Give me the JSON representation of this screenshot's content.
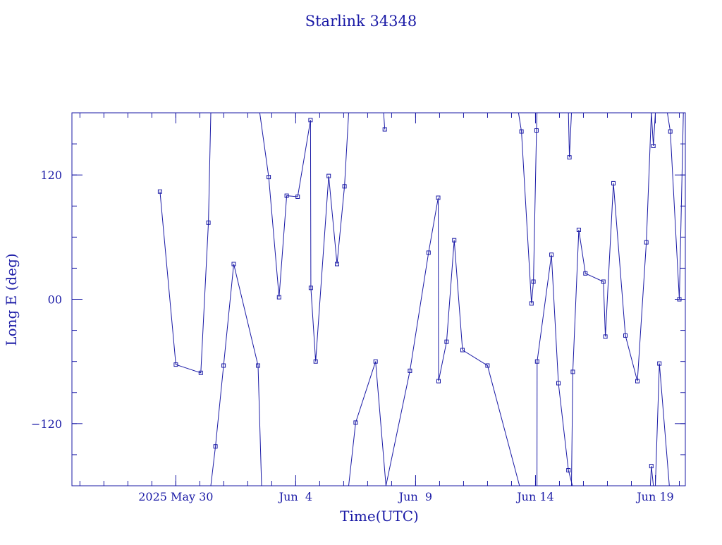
{
  "chart_data": {
    "type": "line",
    "title": "Starlink 34348",
    "xlabel": "Time(UTC)",
    "ylabel": "Long E (deg)",
    "x_unit": "days",
    "xlim": [
      "2025-05-25T16:00",
      "2025-06-20T06:00"
    ],
    "ylim": [
      -180,
      180
    ],
    "x_ticks": [
      {
        "value": "2025-05-30T00:00",
        "label": "2025 May 30"
      },
      {
        "value": "2025-06-04T00:00",
        "label": "Jun  4"
      },
      {
        "value": "2025-06-09T00:00",
        "label": "Jun  9"
      },
      {
        "value": "2025-06-14T00:00",
        "label": "Jun 14"
      },
      {
        "value": "2025-06-19T00:00",
        "label": "Jun 19"
      }
    ],
    "y_ticks": [
      {
        "value": 120,
        "label": "120"
      },
      {
        "value": 0,
        "label": "00"
      },
      {
        "value": -120,
        "label": "−120"
      }
    ],
    "grid": false,
    "legend": "none",
    "color": "#1a1aa6",
    "series": [
      {
        "points": [
          [
            "2025-05-29T08:10",
            104
          ],
          [
            "2025-05-30T00:00",
            -63
          ],
          [
            "2025-05-31T01:00",
            -71
          ],
          [
            "2025-05-31T08:40",
            74
          ],
          [
            "2025-05-31T11:00",
            180
          ]
        ]
      },
      {
        "points": [
          [
            "2025-05-31T11:00",
            -180
          ],
          [
            "2025-05-31T15:40",
            -142
          ],
          [
            "2025-05-31T23:50",
            -64
          ],
          [
            "2025-06-01T10:00",
            34
          ],
          [
            "2025-06-02T10:20",
            -64
          ],
          [
            "2025-06-02T13:50",
            -180
          ]
        ]
      },
      {
        "points": [
          [
            "2025-06-02T12:00",
            180
          ],
          [
            "2025-06-02T21:00",
            118
          ],
          [
            "2025-06-03T07:20",
            2
          ],
          [
            "2025-06-03T15:00",
            100
          ],
          [
            "2025-06-04T02:00",
            99
          ],
          [
            "2025-06-04T14:50",
            173
          ],
          [
            "2025-06-04T15:10",
            11
          ],
          [
            "2025-06-04T20:00",
            -60
          ],
          [
            "2025-06-05T09:00",
            119
          ],
          [
            "2025-06-05T17:20",
            34
          ],
          [
            "2025-06-06T00:50",
            109
          ],
          [
            "2025-06-06T05:00",
            180
          ]
        ]
      },
      {
        "points": [
          [
            "2025-06-06T05:00",
            -180
          ],
          [
            "2025-06-06T12:00",
            -119
          ],
          [
            "2025-06-07T08:00",
            -60
          ],
          [
            "2025-06-07T18:20",
            -180
          ]
        ]
      },
      {
        "points": [
          [
            "2025-06-07T16:00",
            180
          ],
          [
            "2025-06-07T17:10",
            164
          ]
        ]
      },
      {
        "points": [
          [
            "2025-06-07T18:20",
            -180
          ],
          [
            "2025-06-08T18:20",
            -69
          ],
          [
            "2025-06-09T13:00",
            45
          ],
          [
            "2025-06-09T22:40",
            98
          ],
          [
            "2025-06-09T23:00",
            -79
          ],
          [
            "2025-06-10T07:00",
            -41
          ],
          [
            "2025-06-10T14:40",
            57
          ],
          [
            "2025-06-10T23:00",
            -49
          ],
          [
            "2025-06-12T00:00",
            -64
          ],
          [
            "2025-06-13T08:00",
            -180
          ]
        ]
      },
      {
        "points": [
          [
            "2025-06-13T07:00",
            180
          ],
          [
            "2025-06-13T10:00",
            162
          ],
          [
            "2025-06-13T20:00",
            -4
          ],
          [
            "2025-06-13T22:00",
            17
          ],
          [
            "2025-06-14T01:00",
            163
          ],
          [
            "2025-06-14T01:30",
            180
          ]
        ]
      },
      {
        "points": [
          [
            "2025-06-14T01:30",
            -180
          ],
          [
            "2025-06-14T01:40",
            -60
          ],
          [
            "2025-06-14T16:00",
            43
          ],
          [
            "2025-06-14T23:00",
            -81
          ],
          [
            "2025-06-15T09:00",
            -165
          ],
          [
            "2025-06-15T13:00",
            -180
          ]
        ]
      },
      {
        "points": [
          [
            "2025-06-15T09:00",
            180
          ],
          [
            "2025-06-15T10:00",
            137
          ],
          [
            "2025-06-15T12:00",
            180
          ]
        ]
      },
      {
        "points": [
          [
            "2025-06-15T12:00",
            -180
          ],
          [
            "2025-06-15T13:20",
            -70
          ],
          [
            "2025-06-15T19:20",
            67
          ],
          [
            "2025-06-16T02:00",
            25
          ],
          [
            "2025-06-16T20:00",
            17
          ],
          [
            "2025-06-16T22:00",
            -36
          ],
          [
            "2025-06-17T06:00",
            112
          ],
          [
            "2025-06-17T18:00",
            -35
          ],
          [
            "2025-06-18T06:00",
            -79
          ],
          [
            "2025-06-18T15:00",
            55
          ],
          [
            "2025-06-18T20:00",
            180
          ]
        ]
      },
      {
        "points": [
          [
            "2025-06-18T19:00",
            -180
          ],
          [
            "2025-06-18T20:00",
            -161
          ],
          [
            "2025-06-18T22:00",
            -180
          ]
        ]
      },
      {
        "points": [
          [
            "2025-06-18T20:00",
            180
          ],
          [
            "2025-06-18T22:00",
            148
          ],
          [
            "2025-06-19T00:00",
            180
          ]
        ]
      },
      {
        "points": [
          [
            "2025-06-19T00:00",
            -180
          ],
          [
            "2025-06-19T04:00",
            -62
          ],
          [
            "2025-06-19T14:00",
            -180
          ]
        ]
      },
      {
        "points": [
          [
            "2025-06-19T12:00",
            180
          ],
          [
            "2025-06-19T15:00",
            162
          ],
          [
            "2025-06-20T00:00",
            0
          ],
          [
            "2025-06-20T04:00",
            180
          ]
        ]
      }
    ]
  }
}
